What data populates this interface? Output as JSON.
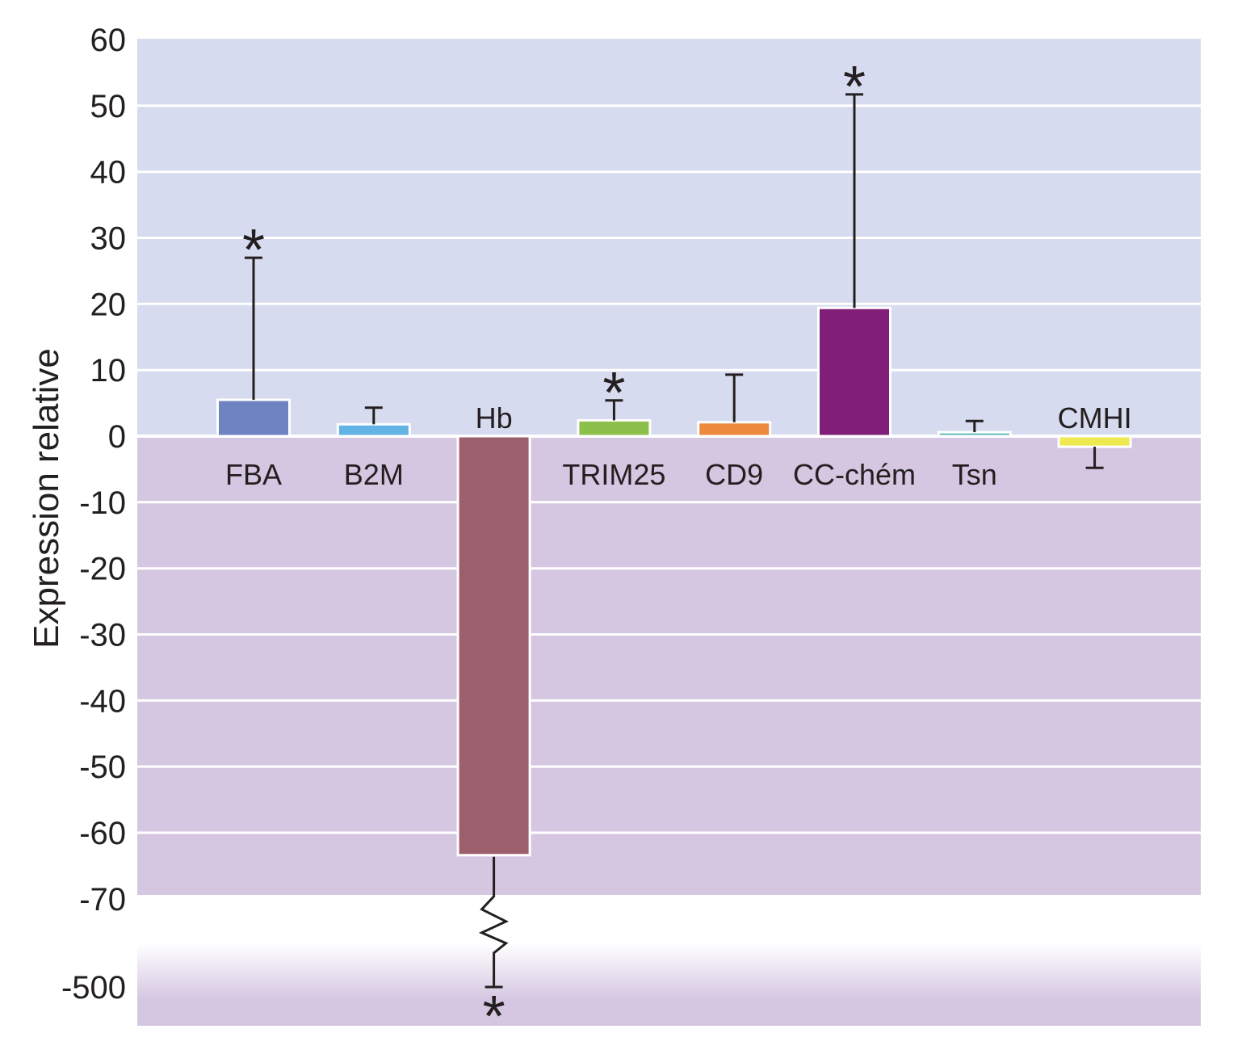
{
  "chart_data": {
    "type": "bar",
    "ylabel": "Expression relative",
    "categories": [
      "FBA",
      "B2M",
      "Hb",
      "TRIM25",
      "CD9",
      "CC-chém",
      "Tsn",
      "CMHI"
    ],
    "values": [
      5.5,
      1.8,
      -63.4,
      2.4,
      2.1,
      19.4,
      0.6,
      -1.6
    ],
    "error_bar_ends": [
      27,
      4.3,
      -500,
      5.4,
      9.3,
      51.7,
      2.3,
      -4.8
    ],
    "significant": [
      true,
      false,
      true,
      true,
      false,
      true,
      false,
      false
    ],
    "significance_marker": "*",
    "colors": [
      "#6F83C3",
      "#63B4E5",
      "#9B5F6D",
      "#8CC04B",
      "#EC8A3C",
      "#801E78",
      "#62B6B4",
      "#EEE94F"
    ],
    "yticks": [
      60,
      50,
      40,
      30,
      20,
      10,
      0,
      -10,
      -20,
      -30,
      -40,
      -50,
      -60,
      -70,
      -500
    ],
    "ylim": [
      -500,
      60
    ],
    "axis_break": [
      -70,
      -500
    ],
    "grid": true,
    "background": {
      "positive": "#D7DBEF",
      "negative": "#D5C7E1"
    },
    "error_bar_color": "#231F20"
  }
}
